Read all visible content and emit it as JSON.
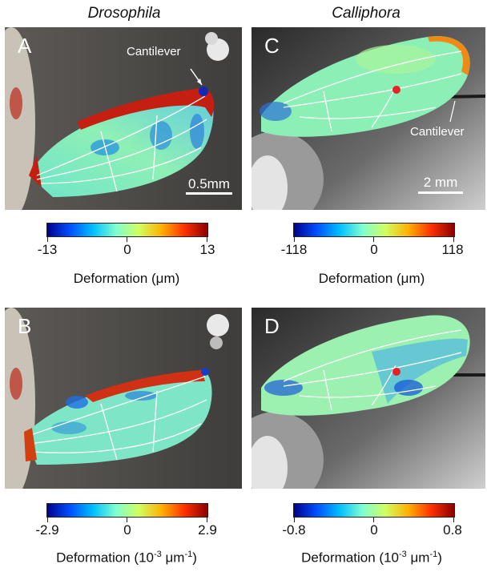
{
  "column_titles": {
    "left": "Drosophila",
    "right": "Calliphora"
  },
  "panels": {
    "A": {
      "letter": "A",
      "annotation": "Cantilever",
      "scale_label": "0.5mm"
    },
    "B": {
      "letter": "B"
    },
    "C": {
      "letter": "C",
      "annotation": "Cantilever",
      "scale_label": "2 mm"
    },
    "D": {
      "letter": "D"
    }
  },
  "colorbars": {
    "A": {
      "min": "-13",
      "mid": "0",
      "max": "13",
      "title": "Deformation (μm)"
    },
    "C": {
      "min": "-118",
      "mid": "0",
      "max": "118",
      "title": "Deformation (μm)"
    },
    "B": {
      "min": "-2.9",
      "mid": "0",
      "max": "2.9",
      "title_main": "Deformation (10",
      "title_sup": "-3",
      "title_unit": " μm",
      "title_sup2": "-1",
      "title_end": ")"
    },
    "D": {
      "min": "-0.8",
      "mid": "0",
      "max": "0.8",
      "title_main": "Deformation (10",
      "title_sup": "-3",
      "title_unit": " μm",
      "title_sup2": "-1",
      "title_end": ")"
    }
  },
  "colors": {
    "background_panel": "#4a4947",
    "colormap_low": "#00008f",
    "colormap_mid": "#7fffd0",
    "colormap_high": "#8b0000",
    "marker": "#e8202a"
  }
}
